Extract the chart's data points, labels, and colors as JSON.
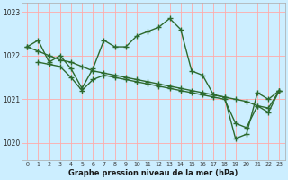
{
  "bg_color": "#cceeff",
  "grid_color": "#ffaaaa",
  "line_color": "#2d6a2d",
  "marker": "+",
  "marker_size": 4,
  "linewidth": 1.0,
  "title": "Graphe pression niveau de la mer (hPa)",
  "xlim": [
    -0.5,
    23.5
  ],
  "ylim": [
    1019.6,
    1023.2
  ],
  "yticks": [
    1020,
    1021,
    1022,
    1023
  ],
  "xticks": [
    0,
    1,
    2,
    3,
    4,
    5,
    6,
    7,
    8,
    9,
    10,
    11,
    12,
    13,
    14,
    15,
    16,
    17,
    18,
    19,
    20,
    21,
    22,
    23
  ],
  "series1_x": [
    0,
    1,
    2,
    3,
    4,
    5,
    6,
    7,
    8,
    9,
    10,
    11,
    12,
    13,
    14,
    15,
    16,
    17,
    18,
    19,
    20,
    21,
    22,
    23
  ],
  "series1_y": [
    1022.2,
    1022.35,
    1021.85,
    1022.0,
    1021.7,
    1021.25,
    1021.7,
    1022.35,
    1022.2,
    1022.2,
    1022.45,
    1022.55,
    1022.65,
    1022.85,
    1022.6,
    1021.65,
    1021.55,
    1021.1,
    1021.05,
    1020.1,
    1020.2,
    1021.15,
    1021.0,
    1021.2
  ],
  "series2_x": [
    0,
    1,
    2,
    3,
    4,
    5,
    6,
    7,
    8,
    9,
    10,
    11,
    12,
    13,
    14,
    15,
    16,
    17,
    18,
    19,
    20,
    21,
    22,
    23
  ],
  "series2_y": [
    1022.2,
    1022.1,
    1022.0,
    1021.9,
    1021.85,
    1021.75,
    1021.65,
    1021.6,
    1021.55,
    1021.5,
    1021.45,
    1021.4,
    1021.35,
    1021.3,
    1021.25,
    1021.2,
    1021.15,
    1021.1,
    1021.05,
    1021.0,
    1020.95,
    1020.85,
    1020.8,
    1021.2
  ],
  "series3_x": [
    1,
    2,
    3,
    4,
    5,
    6,
    7,
    8,
    9,
    10,
    11,
    12,
    13,
    14,
    15,
    16,
    17,
    18,
    19,
    20,
    21,
    22,
    23
  ],
  "series3_y": [
    1021.85,
    1021.8,
    1021.75,
    1021.5,
    1021.2,
    1021.45,
    1021.55,
    1021.5,
    1021.45,
    1021.4,
    1021.35,
    1021.3,
    1021.25,
    1021.2,
    1021.15,
    1021.1,
    1021.05,
    1021.0,
    1020.45,
    1020.35,
    1020.85,
    1020.7,
    1021.2
  ]
}
